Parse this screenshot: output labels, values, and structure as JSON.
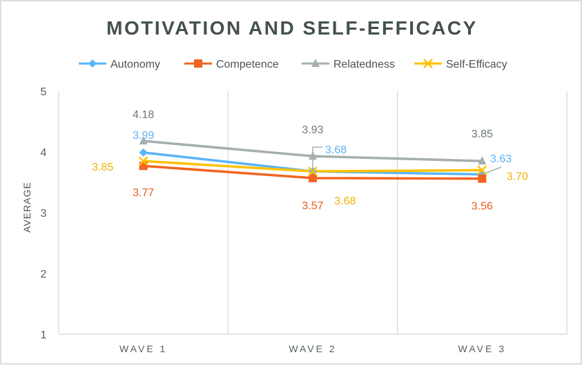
{
  "chart_data": {
    "type": "line",
    "title": "MOTIVATION  AND SELF-EFFICACY",
    "xlabel": "",
    "ylabel": "AVERAGE",
    "categories": [
      "WAVE 1",
      "WAVE 2",
      "WAVE 3"
    ],
    "ylim": [
      1,
      5
    ],
    "yticks": [
      "1",
      "2",
      "3",
      "4",
      "5"
    ],
    "grid": "vertical",
    "legend_position": "top",
    "series": [
      {
        "name": "Autonomy",
        "values": [
          3.99,
          3.68,
          3.63
        ],
        "labels": [
          "3.99",
          "3.68",
          "3.63"
        ],
        "color": "#5ab4f7",
        "label_color": "#5ab4f7",
        "marker": "diamond"
      },
      {
        "name": "Competence",
        "values": [
          3.77,
          3.57,
          3.56
        ],
        "labels": [
          "3.77",
          "3.57",
          "3.56"
        ],
        "color": "#f26522",
        "label_color": "#e8601f",
        "marker": "square"
      },
      {
        "name": "Relatedness",
        "values": [
          4.18,
          3.93,
          3.85
        ],
        "labels": [
          "4.18",
          "3.93",
          "3.85"
        ],
        "color": "#a5afad",
        "label_color": "#6e7978",
        "marker": "triangle"
      },
      {
        "name": "Self-Efficacy",
        "values": [
          3.85,
          3.68,
          3.7
        ],
        "labels": [
          "3.85",
          "3.68",
          "3.70"
        ],
        "color": "#ffc000",
        "label_color": "#f2b200",
        "marker": "x"
      }
    ]
  }
}
